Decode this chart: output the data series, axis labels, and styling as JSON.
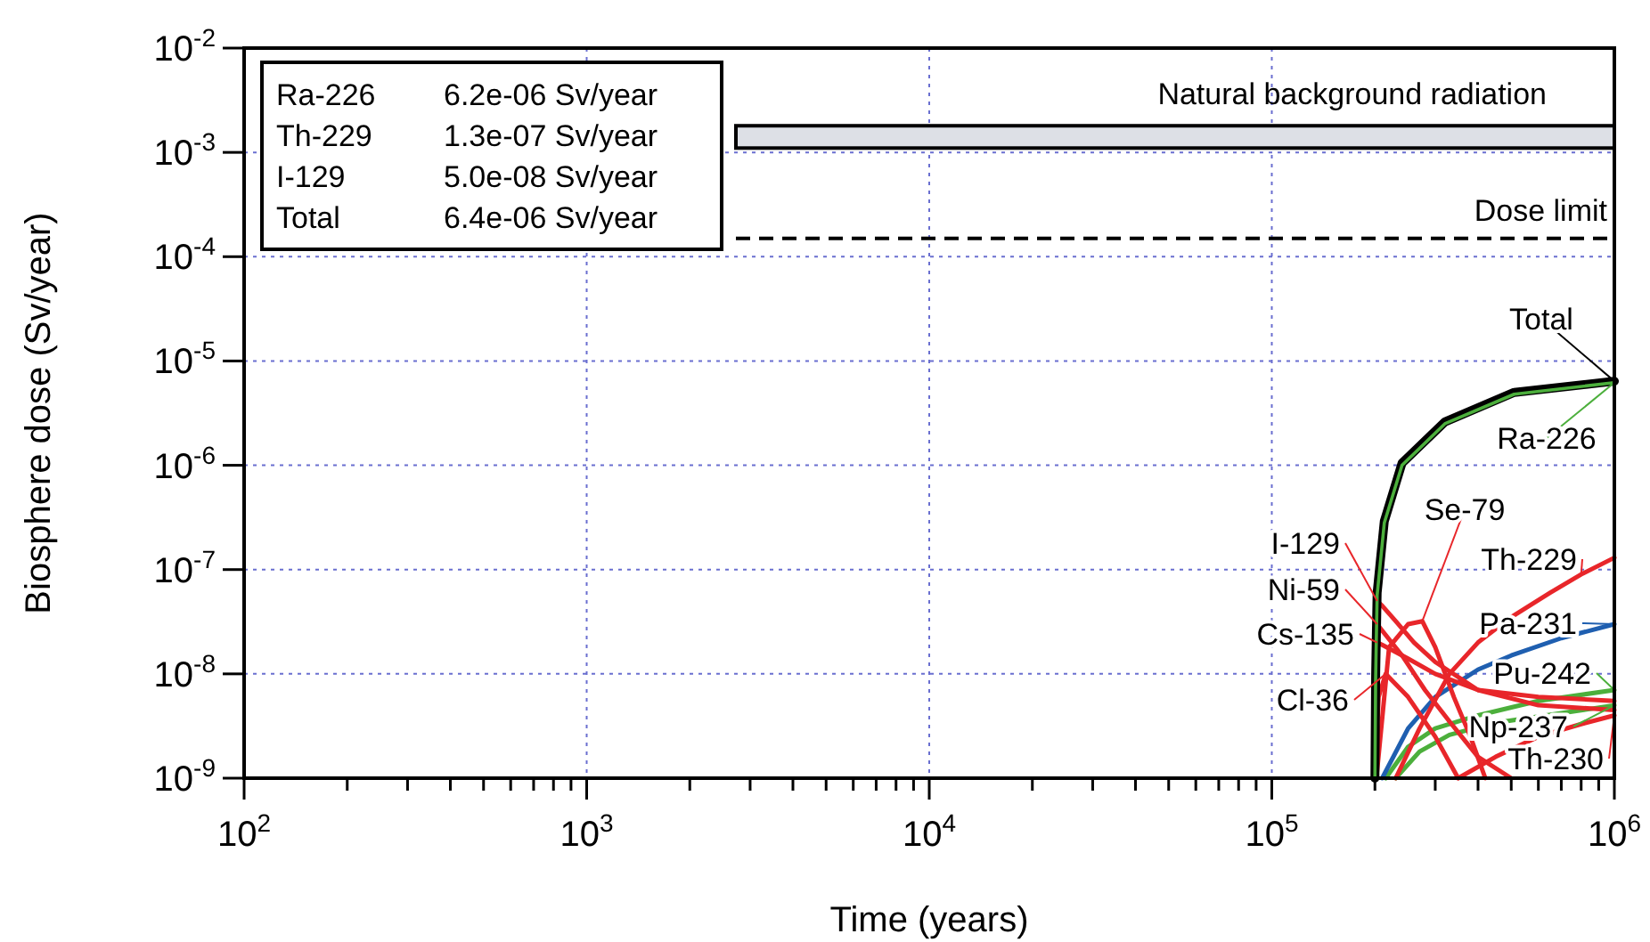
{
  "chart_data": {
    "type": "line",
    "xlabel": "Time (years)",
    "ylabel": "Biosphere dose (Sv/year)",
    "log": "xy",
    "grid": true,
    "legend": "bottom right",
    "marker": "none",
    "line_style": "solid",
    "xlim": [
      100,
      1000000
    ],
    "ylim": [
      1e-09,
      0.01
    ],
    "xticks": [
      {
        "value": 100,
        "label": "10$^{2}$"
      },
      {
        "value": 200,
        "label": null
      },
      {
        "value": 300,
        "label": null
      },
      {
        "value": 400,
        "label": null
      },
      {
        "value": 500,
        "label": null
      },
      {
        "value": 600,
        "label": null
      },
      {
        "value": 700,
        "label": null
      },
      {
        "value": 800,
        "label": null
      },
      {
        "value": 900,
        "label": null
      },
      {
        "value": 1000,
        "label": "10$^{3}$"
      },
      {
        "value": 2000,
        "label": null
      },
      {
        "value": 3000,
        "label": null
      },
      {
        "value": 4000,
        "label": null
      },
      {
        "value": 5000,
        "label": null
      },
      {
        "value": 6000,
        "label": null
      },
      {
        "value": 7000,
        "label": null
      },
      {
        "value": 8000,
        "label": null
      },
      {
        "value": 9000,
        "label": null
      },
      {
        "value": 10000,
        "label": "10$^{4}$"
      },
      {
        "value": 20000,
        "label": null
      },
      {
        "value": 30000,
        "label": null
      },
      {
        "value": 40000,
        "label": null
      },
      {
        "value": 50000,
        "label": null
      },
      {
        "value": 60000,
        "label": null
      },
      {
        "value": 70000,
        "label": null
      },
      {
        "value": 80000,
        "label": null
      },
      {
        "value": 90000,
        "label": null
      },
      {
        "value": 100000,
        "label": "10$^{5}$"
      },
      {
        "value": 200000,
        "label": null
      },
      {
        "value": 300000,
        "label": null
      },
      {
        "value": 400000,
        "label": null
      },
      {
        "value": 500000,
        "label": null
      },
      {
        "value": 600000,
        "label": null
      },
      {
        "value": 700000,
        "label": null
      },
      {
        "value": 800000,
        "label": null
      },
      {
        "value": 900000,
        "label": null
      },
      {
        "value": 1000000,
        "label": "10$^{6}$"
      }
    ],
    "yticks": [
      {
        "value": 1e-09,
        "label": "10$^{-9}$"
      },
      {
        "value": 1e-08,
        "label": "10$^{-8}$"
      },
      {
        "value": 1e-07,
        "label": "10$^{-7}$"
      },
      {
        "value": 1e-06,
        "label": "10$^{-6}$"
      },
      {
        "value": 1e-05,
        "label": "10$^{-5}$"
      },
      {
        "value": 0.0001,
        "label": "10$^{-4}$"
      },
      {
        "value": 0.001,
        "label": "10$^{-3}$"
      },
      {
        "value": 0.01,
        "label": "10$^{-2}$"
      }
    ],
    "bands": [
      {
        "axis": "y",
        "from": 0.0011,
        "to": 0.0018,
        "label": "Natural background radiation",
        "color": "#dde0e6"
      }
    ],
    "ref_lines": [
      {
        "axis": "y",
        "value": 0.00015,
        "label": "Dose limit",
        "color": "#000000",
        "line_style": "dashed"
      }
    ],
    "annotations": [
      "Ra-226\t6.2e-06 Sv/year",
      "Th-229\t1.3e-07 Sv/year",
      "I-129\t5.0e-08 Sv/year",
      "Total\t6.4e-06 Sv/year"
    ],
    "series": [
      {
        "name": "Total",
        "color": "#000000",
        "x": [
          200000,
          201000,
          203000,
          213000,
          240000,
          320000,
          510000,
          1000000
        ],
        "values": [
          1e-09,
          1e-08,
          6e-08,
          2.9e-07,
          1.05e-06,
          2.6e-06,
          5e-06,
          6.4e-06
        ]
      },
      {
        "name": "Ra-226",
        "color": "#4caf3c",
        "x": [
          200000,
          201000,
          203000,
          213000,
          240000,
          320000,
          510000,
          1000000
        ],
        "values": [
          1e-09,
          9.5e-09,
          5.7e-08,
          2.8e-07,
          1e-06,
          2.5e-06,
          4.8e-06,
          6.2e-06
        ]
      },
      {
        "name": "I-129",
        "color": "#e8262a",
        "x": [
          200000,
          203000,
          210000,
          230000,
          260000,
          300000,
          400000,
          600000,
          1000000
        ],
        "values": [
          1e-09,
          5e-08,
          4.5e-08,
          3.2e-08,
          2e-08,
          1.3e-08,
          7e-09,
          5e-09,
          4.5e-09
        ]
      },
      {
        "name": "Ni-59",
        "color": "#e8262a",
        "x": [
          200000,
          203000,
          210000,
          240000,
          280000,
          330000,
          400000,
          500000
        ],
        "values": [
          1e-09,
          3e-08,
          2.6e-08,
          1.5e-08,
          7e-09,
          3.5e-09,
          1.6e-09,
          1e-09
        ]
      },
      {
        "name": "Cs-135",
        "color": "#e8262a",
        "x": [
          200000,
          203000,
          210000,
          250000,
          300000,
          400000,
          600000,
          1000000
        ],
        "values": [
          1e-09,
          2e-08,
          1.9e-08,
          1.4e-08,
          1e-08,
          7e-09,
          6e-09,
          5.5e-09
        ]
      },
      {
        "name": "Se-79",
        "color": "#e8262a",
        "x": [
          202000,
          220000,
          250000,
          275000,
          300000,
          340000,
          380000,
          420000
        ],
        "values": [
          1e-09,
          1.8e-08,
          3e-08,
          3.2e-08,
          1.8e-08,
          6e-09,
          2.5e-09,
          1e-09
        ]
      },
      {
        "name": "Cl-36",
        "color": "#e8262a",
        "x": [
          200000,
          205000,
          215000,
          250000,
          300000,
          350000
        ],
        "values": [
          1e-09,
          6e-09,
          1e-08,
          6e-09,
          2.5e-09,
          1e-09
        ]
      },
      {
        "name": "Th-229",
        "color": "#e8262a",
        "x": [
          230000,
          270000,
          330000,
          400000,
          500000,
          650000,
          800000,
          1000000
        ],
        "values": [
          1e-09,
          3e-09,
          1e-08,
          2e-08,
          3.5e-08,
          6e-08,
          9e-08,
          1.3e-07
        ]
      },
      {
        "name": "Pa-231",
        "color": "#1f5fb0",
        "x": [
          210000,
          250000,
          300000,
          400000,
          500000,
          700000,
          1000000
        ],
        "values": [
          1e-09,
          3e-09,
          6e-09,
          1.1e-08,
          1.5e-08,
          2.2e-08,
          3e-08
        ]
      },
      {
        "name": "Pu-242",
        "color": "#4caf3c",
        "x": [
          215000,
          250000,
          300000,
          400000,
          600000,
          1000000
        ],
        "values": [
          1e-09,
          2e-09,
          3e-09,
          4e-09,
          5.5e-09,
          7e-09
        ]
      },
      {
        "name": "Np-237",
        "color": "#4caf3c",
        "x": [
          230000,
          270000,
          330000,
          450000,
          700000,
          1000000
        ],
        "values": [
          1e-09,
          1.8e-09,
          2.6e-09,
          3.4e-09,
          4.2e-09,
          5e-09
        ]
      },
      {
        "name": "Th-230",
        "color": "#e8262a",
        "x": [
          350000,
          450000,
          600000,
          800000,
          1000000
        ],
        "values": [
          1e-09,
          1.6e-09,
          2.5e-09,
          3.3e-09,
          4e-09
        ]
      }
    ]
  }
}
